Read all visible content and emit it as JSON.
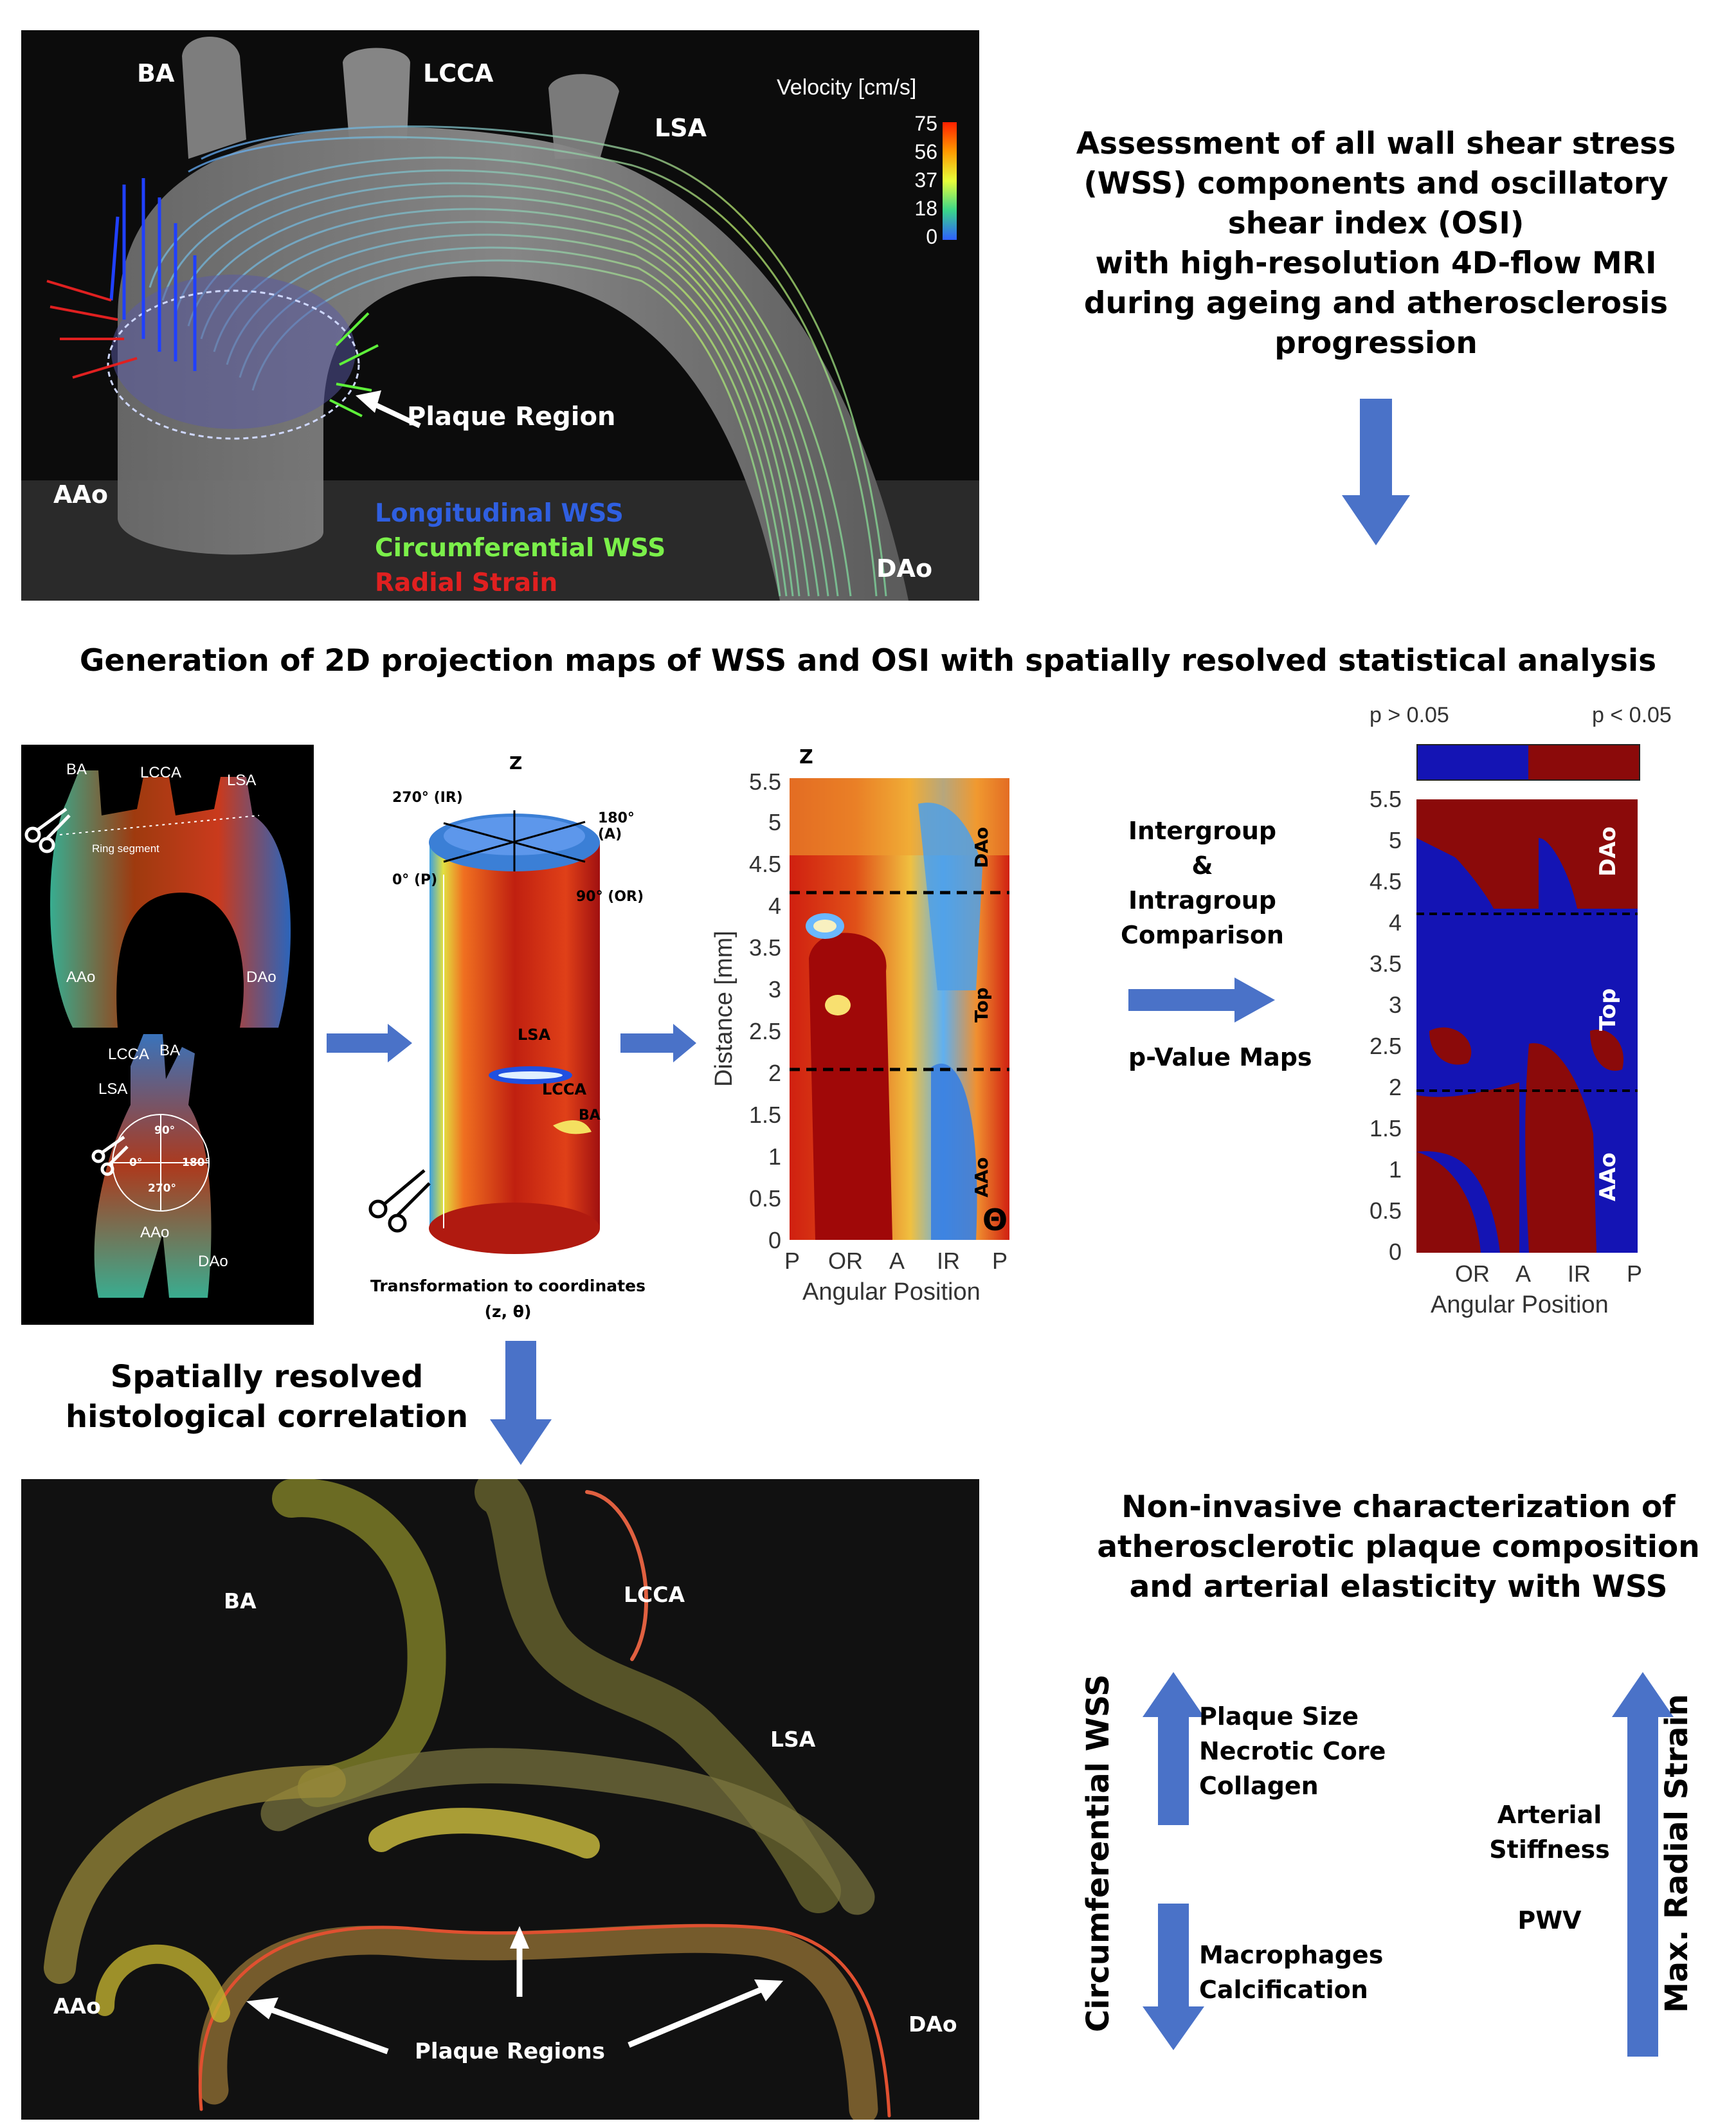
{
  "top_panel": {
    "labels": {
      "ba": "BA",
      "lcca": "LCCA",
      "lsa": "LSA",
      "aao": "AAo",
      "dao": "DAo",
      "plaque": "Plaque Region"
    },
    "colorbar": {
      "title": "Velocity [cm/s]",
      "ticks": [
        "75",
        "56",
        "37",
        "18",
        "0"
      ]
    },
    "legend": [
      {
        "text": "Longitudinal WSS",
        "color": "#2f5fe0"
      },
      {
        "text": "Circumferential WSS",
        "color": "#7bf04a"
      },
      {
        "text": "Radial Strain",
        "color": "#e02020"
      }
    ]
  },
  "assessment_text": [
    "Assessment of all wall shear stress",
    "(WSS) components and oscillatory",
    "shear index (OSI)",
    "with high-resolution 4D-flow MRI",
    "during ageing and atherosclerosis",
    "progression"
  ],
  "generation_heading": "Generation of 2D projection maps of WSS and OSI with spatially resolved  statistical analysis",
  "aorta_panel": {
    "top_labels": {
      "ba": "BA",
      "lcca": "LCCA",
      "lsa": "LSA",
      "ring": "Ring segment",
      "aao": "AAo",
      "dao": "DAo"
    },
    "bottom_labels": {
      "lcca": "LCCA",
      "ba": "BA",
      "lsa": "LSA",
      "aao": "AAo",
      "dao": "DAo",
      "deg90": "90°",
      "deg0": "0°",
      "deg180": "180°",
      "deg270": "270°"
    }
  },
  "cylinder": {
    "z": "Z",
    "deg270": "270° (IR)",
    "deg180": "180° (A)",
    "deg0": "0° (P)",
    "deg90": "90° (OR)",
    "lsa": "LSA",
    "lcca": "LCCA",
    "ba": "BA",
    "caption_line1": "Transformation to coordinates",
    "caption_line2": "(z, θ)"
  },
  "map2d": {
    "z": "Z",
    "ylabel": "Distance [mm]",
    "xlabel": "Angular Position",
    "yticks": [
      "5.5",
      "5",
      "4.5",
      "4",
      "3.5",
      "3",
      "2.5",
      "2",
      "1.5",
      "1",
      "0.5",
      "0"
    ],
    "xticks": [
      "P",
      "OR",
      "A",
      "IR",
      "P"
    ],
    "regions": {
      "dao": "DAo",
      "top": "Top",
      "aao": "AAo"
    },
    "theta": "Θ"
  },
  "comparison": {
    "line1": "Intergroup",
    "line2": "&",
    "line3": "Intragroup",
    "line4": "Comparison",
    "pvalue": "p-Value Maps"
  },
  "pmap": {
    "legend_left": "p > 0.05",
    "legend_right": "p < 0.05",
    "colors": {
      "nonsig": "#1414b4",
      "sig": "#8b0a0a"
    },
    "yticks": [
      "5.5",
      "5",
      "4.5",
      "4",
      "3.5",
      "3",
      "2.5",
      "2",
      "1.5",
      "1",
      "0.5",
      "0"
    ],
    "xticks": [
      "OR",
      "A",
      "IR",
      "P"
    ],
    "xlabel": "Angular Position",
    "regions": {
      "dao": "DAo",
      "top": "Top",
      "aao": "AAo"
    }
  },
  "histology_heading": [
    "Spatially resolved",
    "histological correlation"
  ],
  "histology": {
    "ba": "BA",
    "lcca": "LCCA",
    "lsa": "LSA",
    "aao": "AAo",
    "dao": "DAo",
    "plaque": "Plaque Regions"
  },
  "noninvasive_text": [
    "Non-invasive characterization of",
    "atherosclerotic plaque composition",
    "and arterial elasticity with WSS"
  ],
  "summary": {
    "circ_label": "Circumferential WSS",
    "up_items": [
      "Plaque Size",
      "Necrotic Core",
      "Collagen"
    ],
    "down_items": [
      "Macrophages",
      "Calcification"
    ],
    "radial_label": "Max. Radial Strain",
    "radial_items": [
      "Arterial",
      "Stiffness",
      "PWV"
    ]
  }
}
